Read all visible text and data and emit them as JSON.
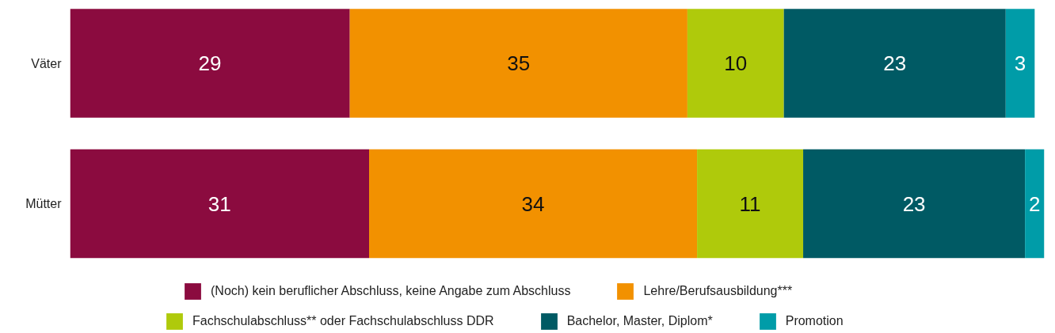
{
  "chart_data": {
    "type": "bar",
    "orientation": "horizontal",
    "stacked": true,
    "data_labels": true,
    "legend": "bottom",
    "categories": [
      "Väter",
      "Mütter"
    ],
    "series": [
      {
        "name": "(Noch) kein beruflicher Abschluss, keine Angabe zum Abschluss",
        "color": "#8b0b3f",
        "values": [
          29,
          31
        ]
      },
      {
        "name": "Lehre/Berufsausbildung***",
        "color": "#f29100",
        "values": [
          35,
          34
        ]
      },
      {
        "name": "Fachschulabschluss** oder Fachschulabschluss DDR",
        "color": "#afca0b",
        "values": [
          10,
          11
        ]
      },
      {
        "name": "Bachelor, Master, Diplom*",
        "color": "#005a64",
        "values": [
          23,
          23
        ]
      },
      {
        "name": "Promotion",
        "color": "#009ca8",
        "values": [
          3,
          2
        ]
      }
    ]
  }
}
